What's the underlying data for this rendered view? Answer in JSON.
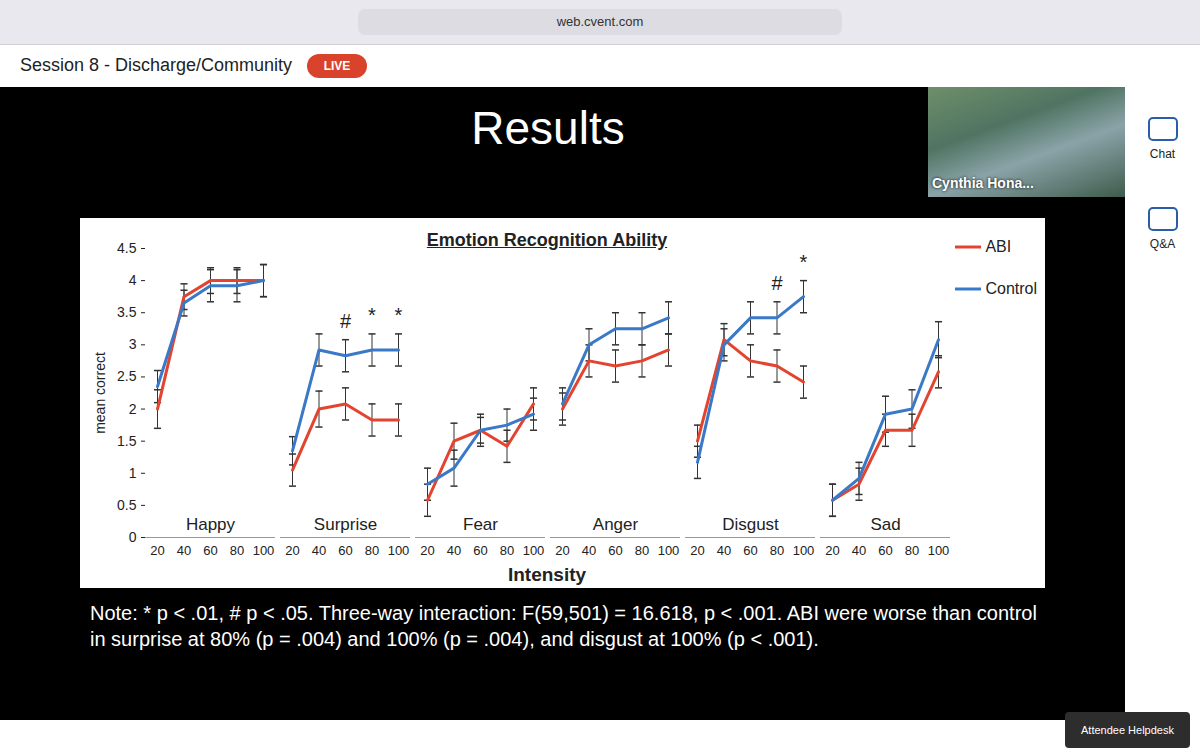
{
  "page": {
    "browser": {
      "address": "web.cvent.com"
    },
    "header": {
      "session": "Session 8 - Discharge/Community",
      "badge": "LIVE"
    },
    "slide_title": "Results",
    "speaker": "Cynthia Hona...",
    "sidebar": [
      "Chat",
      "Q&A"
    ],
    "helpdesk": "Attendee Helpdesk",
    "note": "Note: * p < .01, # p < .05. Three-way interaction: F(59,501) = 16.618, p < .001. ABI were worse than control in surprise at 80% (p =  .004) and 100% (p = .004), and disgust at 100% (p < .001)."
  },
  "chart_data": {
    "type": "line",
    "title": "Emotion Recognition Ability",
    "categories": [
      "Happy",
      "Surprise",
      "Fear",
      "Anger",
      "Disgust",
      "Sad"
    ],
    "x": [
      20,
      40,
      60,
      80,
      100
    ],
    "xlim": [
      20,
      100
    ],
    "xticks": [
      20,
      40,
      60,
      80,
      100
    ],
    "x_label": "Intensity",
    "ylim": [
      0,
      4.5
    ],
    "yticks": [
      0,
      0.5,
      1,
      1.5,
      2,
      2.5,
      3,
      3.5,
      4,
      4.5
    ],
    "y_label": "mean correct",
    "legend": "top-right",
    "series": [
      {
        "name": "ABI",
        "color": "#e2442f",
        "values": [
          [
            2.0,
            3.75,
            4.0,
            4.0,
            4.0
          ],
          [
            1.05,
            2.0,
            2.08,
            1.83,
            1.83
          ],
          [
            0.58,
            1.5,
            1.67,
            1.42,
            2.08
          ],
          [
            2.0,
            2.75,
            2.67,
            2.75,
            2.92
          ],
          [
            1.5,
            3.08,
            2.75,
            2.67,
            2.42
          ],
          [
            0.58,
            0.83,
            1.67,
            1.67,
            2.58
          ]
        ],
        "errors": [
          [
            0.3,
            0.2,
            0.2,
            0.2,
            0.25
          ],
          [
            0.25,
            0.28,
            0.25,
            0.25,
            0.25
          ],
          [
            0.25,
            0.28,
            0.2,
            0.25,
            0.25
          ],
          [
            0.25,
            0.25,
            0.25,
            0.25,
            0.25
          ],
          [
            0.25,
            0.25,
            0.25,
            0.25,
            0.25
          ],
          [
            0.25,
            0.25,
            0.25,
            0.25,
            0.25
          ]
        ]
      },
      {
        "name": "Control",
        "color": "#3a78c8",
        "values": [
          [
            2.35,
            3.65,
            3.92,
            3.92,
            4.0
          ],
          [
            1.35,
            2.92,
            2.83,
            2.92,
            2.92
          ],
          [
            0.83,
            1.08,
            1.67,
            1.75,
            1.92
          ],
          [
            2.08,
            3.0,
            3.25,
            3.25,
            3.42
          ],
          [
            1.17,
            3.0,
            3.42,
            3.42,
            3.75
          ],
          [
            0.58,
            0.92,
            1.92,
            2.0,
            3.08
          ]
        ],
        "errors": [
          [
            0.25,
            0.2,
            0.25,
            0.25,
            0.25
          ],
          [
            0.22,
            0.25,
            0.25,
            0.25,
            0.25
          ],
          [
            0.25,
            0.28,
            0.25,
            0.25,
            0.25
          ],
          [
            0.25,
            0.25,
            0.25,
            0.25,
            0.25
          ],
          [
            0.25,
            0.25,
            0.25,
            0.25,
            0.25
          ],
          [
            0.25,
            0.25,
            0.28,
            0.3,
            0.28
          ]
        ]
      }
    ],
    "annotations": [
      {
        "category": "Surprise",
        "x": 60,
        "text": "#"
      },
      {
        "category": "Surprise",
        "x": 80,
        "text": "*"
      },
      {
        "category": "Surprise",
        "x": 100,
        "text": "*"
      },
      {
        "category": "Disgust",
        "x": 80,
        "text": "#"
      },
      {
        "category": "Disgust",
        "x": 100,
        "text": "*"
      }
    ]
  }
}
